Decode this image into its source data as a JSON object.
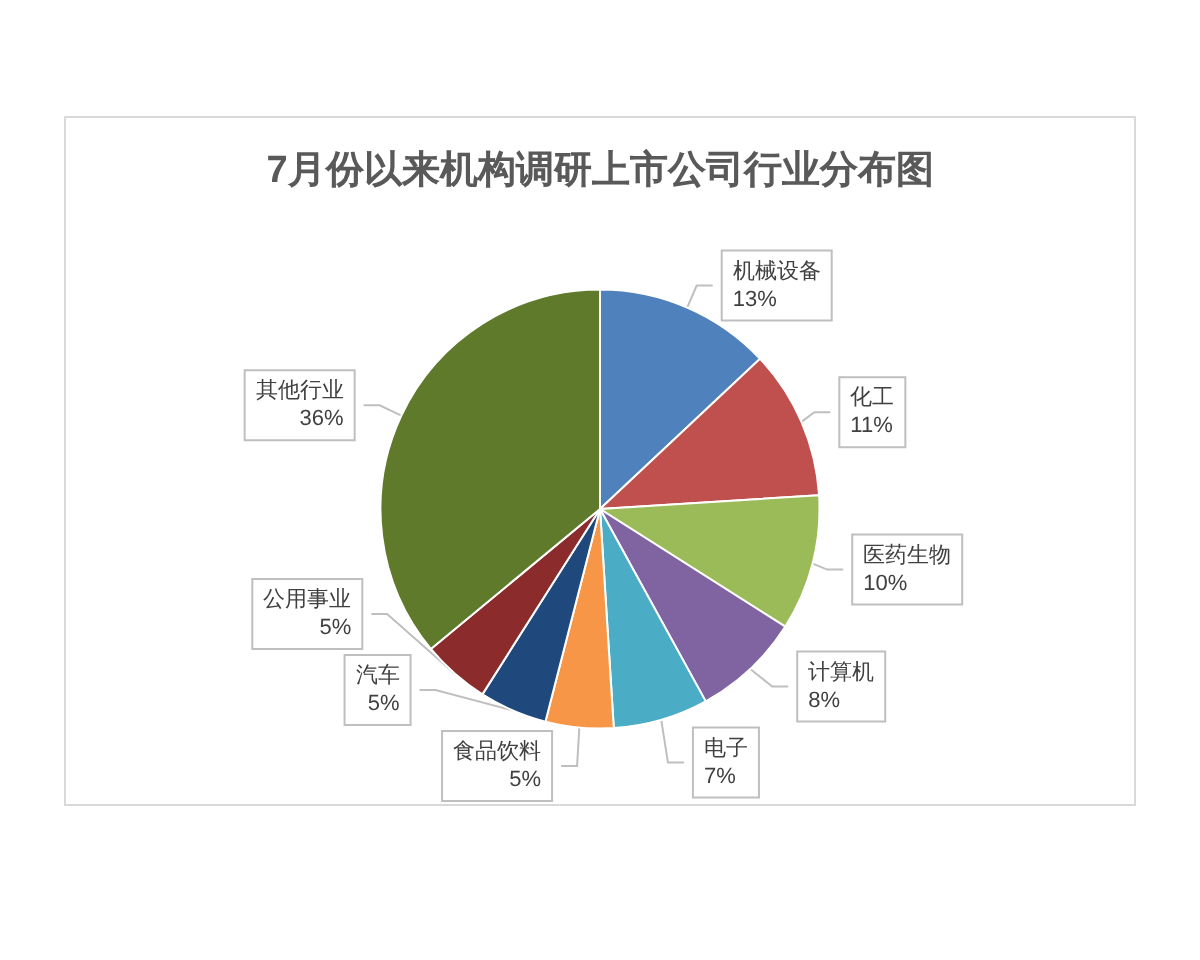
{
  "chart_data": {
    "type": "pie",
    "title": "7月份以来机构调研上市公司行业分布图",
    "categories": [
      "机械设备",
      "化工",
      "医药生物",
      "计算机",
      "电子",
      "食品饮料",
      "汽车",
      "公用事业",
      "其他行业"
    ],
    "values": [
      13,
      11,
      10,
      8,
      7,
      5,
      5,
      5,
      36
    ],
    "value_labels": [
      "13%",
      "11%",
      "10%",
      "8%",
      "7%",
      "5%",
      "5%",
      "5%",
      "36%"
    ],
    "colors": [
      "#4f81bd",
      "#c0504d",
      "#9bbb59",
      "#8064a2",
      "#4bacc6",
      "#f79646",
      "#1f497d",
      "#8b2b2b",
      "#5f7a2a"
    ]
  }
}
